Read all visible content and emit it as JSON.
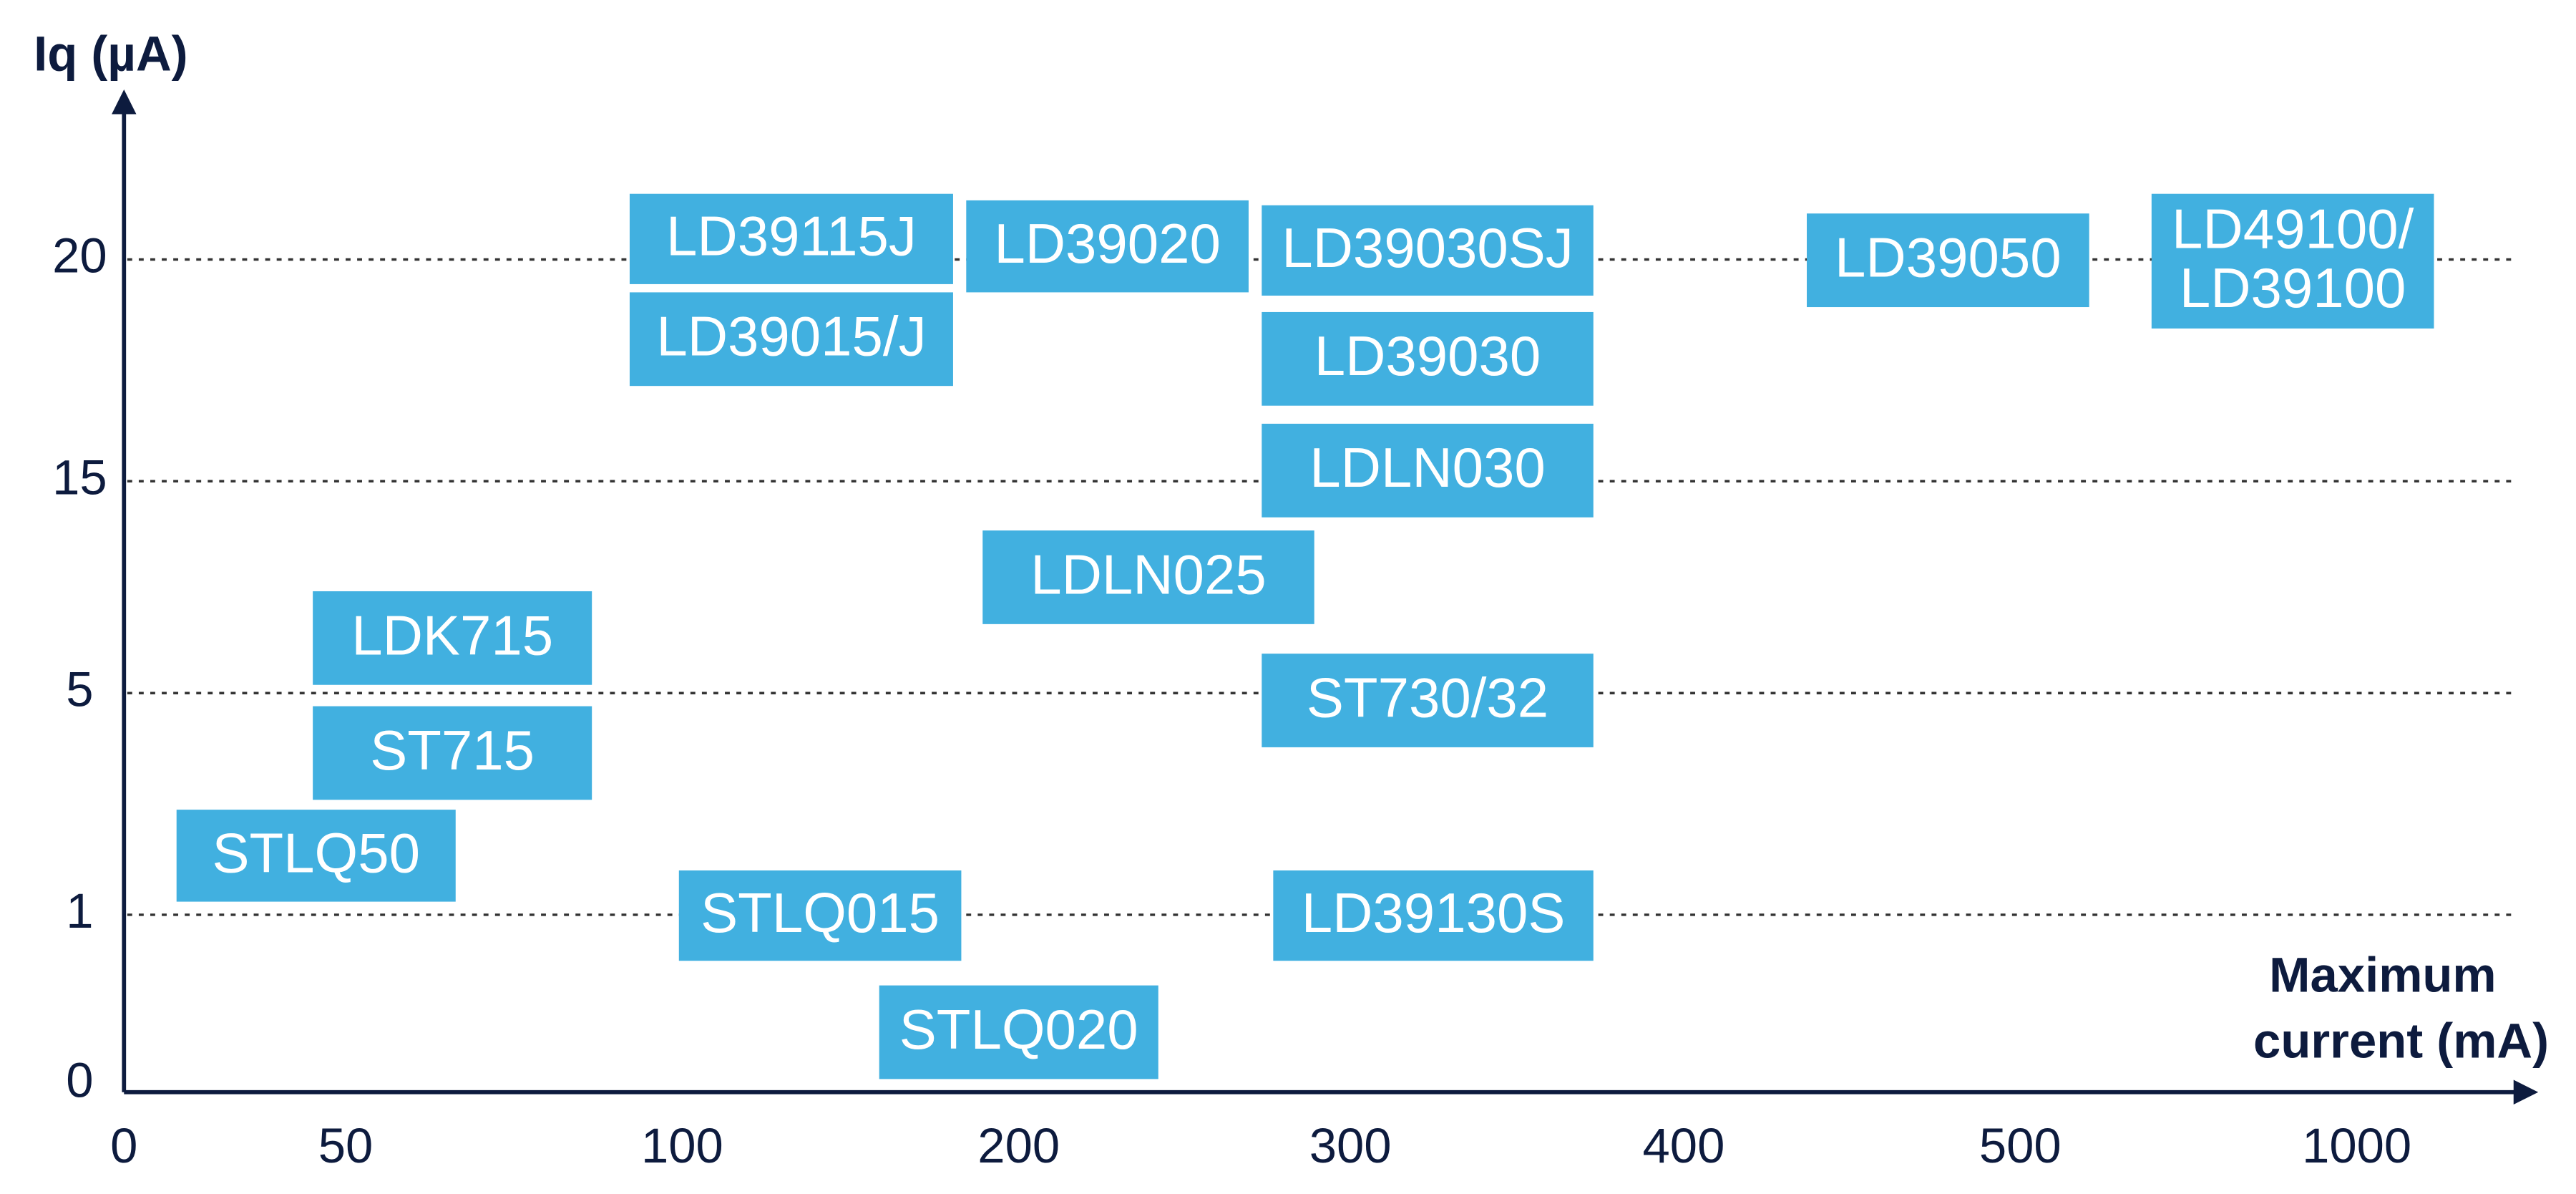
{
  "y_axis": {
    "title": "Iq (µA)",
    "ticks": [
      "0",
      "1",
      "5",
      "15",
      "20"
    ]
  },
  "x_axis": {
    "title_lines": [
      "Maximum",
      "current (mA)"
    ],
    "ticks": [
      "0",
      "50",
      "100",
      "200",
      "300",
      "400",
      "500",
      "1000"
    ]
  },
  "nodes": [
    {
      "lines": [
        "LD39115J"
      ]
    },
    {
      "lines": [
        "LD39015/J"
      ]
    },
    {
      "lines": [
        "LD39020"
      ]
    },
    {
      "lines": [
        "LD39030SJ"
      ]
    },
    {
      "lines": [
        "LD39030"
      ]
    },
    {
      "lines": [
        "LDLN030"
      ]
    },
    {
      "lines": [
        "LD39050"
      ]
    },
    {
      "lines": [
        "LD49100/",
        "LD39100"
      ]
    },
    {
      "lines": [
        "LDLN025"
      ]
    },
    {
      "lines": [
        "LDK715"
      ]
    },
    {
      "lines": [
        "ST715"
      ]
    },
    {
      "lines": [
        "STLQ50"
      ]
    },
    {
      "lines": [
        "ST730/32"
      ]
    },
    {
      "lines": [
        "STLQ015"
      ]
    },
    {
      "lines": [
        "LD39130S"
      ]
    },
    {
      "lines": [
        "STLQ020"
      ]
    }
  ]
}
